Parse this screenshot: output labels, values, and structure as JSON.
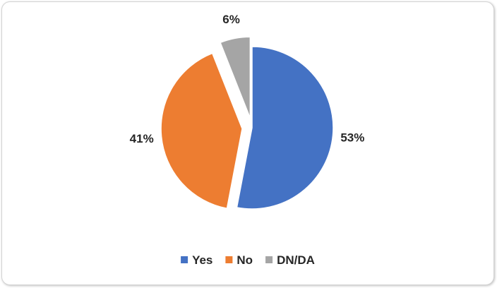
{
  "chart_data": {
    "type": "pie",
    "title": "",
    "slices": [
      {
        "label": "Yes",
        "value": 53,
        "display": "53%",
        "color": "#4472C4",
        "exploded": false
      },
      {
        "label": "No",
        "value": 41,
        "display": "41%",
        "color": "#ED7D31",
        "exploded": true
      },
      {
        "label": "DN/DA",
        "value": 6,
        "display": "6%",
        "color": "#A5A5A5",
        "exploded": true
      }
    ],
    "legend_position": "bottom",
    "start_angle_deg": 0,
    "direction": "clockwise"
  }
}
